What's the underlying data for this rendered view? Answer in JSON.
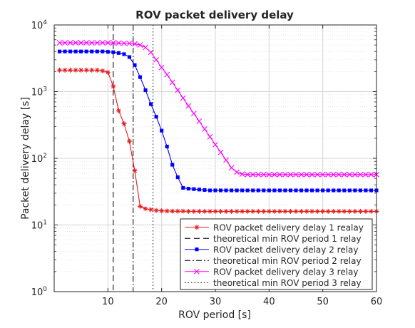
{
  "chart_data": {
    "type": "line",
    "title": "ROV packet delivery delay",
    "xlabel": "ROV period [s]",
    "ylabel": "Packet delivery delay [s]",
    "xlim": [
      0,
      60
    ],
    "ylim": [
      1,
      10000
    ],
    "yscale": "log",
    "grid": true,
    "legend_position": "bottom-right",
    "x_ticks": [
      {
        "value": 10,
        "label": "10"
      },
      {
        "value": 20,
        "label": "20"
      },
      {
        "value": 30,
        "label": "30"
      },
      {
        "value": 40,
        "label": "40"
      },
      {
        "value": 50,
        "label": "50"
      },
      {
        "value": 60,
        "label": "60"
      }
    ],
    "y_ticks": [
      {
        "value": 1,
        "base": "10",
        "exp": "0"
      },
      {
        "value": 10,
        "base": "10",
        "exp": "1"
      },
      {
        "value": 100,
        "base": "10",
        "exp": "2"
      },
      {
        "value": 1000,
        "base": "10",
        "exp": "3"
      },
      {
        "value": 10000,
        "base": "10",
        "exp": "4"
      }
    ],
    "series": [
      {
        "name": "ROV packet delivery delay 1 realay",
        "color": "#e41a1c",
        "marker": "asterisk",
        "x": [
          1,
          2,
          3,
          4,
          5,
          6,
          7,
          8,
          9,
          10,
          11,
          12,
          13,
          14,
          15,
          16,
          17,
          18,
          19,
          20,
          21,
          22,
          23,
          24,
          25,
          26,
          27,
          28,
          29,
          30,
          31,
          32,
          33,
          34,
          35,
          36,
          37,
          38,
          39,
          40,
          41,
          42,
          43,
          44,
          45,
          46,
          47,
          48,
          49,
          50,
          51,
          52,
          53,
          54,
          55,
          56,
          57,
          58,
          59,
          60
        ],
        "values": [
          2100,
          2100,
          2100,
          2100,
          2100,
          2100,
          2100,
          2100,
          2050,
          1950,
          1200,
          520,
          330,
          180,
          65,
          19,
          17.5,
          17,
          16.5,
          16.3,
          16.2,
          16.1,
          16.1,
          16.1,
          16,
          16,
          16,
          16,
          16,
          16,
          16,
          16,
          16,
          16,
          16,
          16,
          16,
          16,
          16,
          16,
          16,
          16,
          16,
          16,
          16,
          16,
          16,
          16,
          16,
          16,
          16,
          16,
          16,
          16,
          16,
          16,
          16,
          16,
          16,
          16
        ]
      },
      {
        "name": "theoretical min ROV period 1 relay",
        "color": "#000000",
        "style": "dashed",
        "vline": 11
      },
      {
        "name": "ROV packet delivery delay 2 relay",
        "color": "#0000ff",
        "marker": "square",
        "x": [
          1,
          2,
          3,
          4,
          5,
          6,
          7,
          8,
          9,
          10,
          11,
          12,
          13,
          14,
          15,
          16,
          17,
          18,
          19,
          20,
          21,
          22,
          23,
          24,
          25,
          26,
          27,
          28,
          29,
          30,
          31,
          32,
          33,
          34,
          35,
          36,
          37,
          38,
          39,
          40,
          41,
          42,
          43,
          44,
          45,
          46,
          47,
          48,
          49,
          50,
          51,
          52,
          53,
          54,
          55,
          56,
          57,
          58,
          59,
          60
        ],
        "values": [
          4000,
          4000,
          4000,
          4000,
          4000,
          4000,
          4000,
          4000,
          4000,
          3950,
          3900,
          3800,
          3650,
          3300,
          2500,
          1650,
          1050,
          650,
          420,
          260,
          150,
          80,
          52,
          36,
          35,
          34.5,
          34,
          33.5,
          33,
          33,
          33,
          33,
          33,
          33,
          33,
          33,
          33,
          33,
          33,
          33,
          33,
          33,
          33,
          33,
          33,
          33,
          33,
          33,
          33,
          33,
          33,
          33,
          33,
          33,
          33,
          33,
          33,
          33,
          33,
          33
        ]
      },
      {
        "name": "theoretical min ROV period 2 relay",
        "color": "#000000",
        "style": "dashdot",
        "vline": 14.7
      },
      {
        "name": "ROV packet delivery delay 3 relay",
        "color": "#ff00ff",
        "marker": "x",
        "x": [
          1,
          2,
          3,
          4,
          5,
          6,
          7,
          8,
          9,
          10,
          11,
          12,
          13,
          14,
          15,
          16,
          17,
          18,
          19,
          20,
          21,
          22,
          23,
          24,
          25,
          26,
          27,
          28,
          29,
          30,
          31,
          32,
          33,
          34,
          35,
          36,
          37,
          38,
          39,
          40,
          41,
          42,
          43,
          44,
          45,
          46,
          47,
          48,
          49,
          50,
          51,
          52,
          53,
          54,
          55,
          56,
          57,
          58,
          59,
          60
        ],
        "values": [
          5400,
          5400,
          5400,
          5400,
          5400,
          5400,
          5400,
          5400,
          5400,
          5400,
          5400,
          5350,
          5300,
          5300,
          5200,
          5000,
          4600,
          3900,
          3000,
          2300,
          1800,
          1380,
          1050,
          800,
          610,
          470,
          360,
          275,
          210,
          160,
          123,
          94,
          72,
          62,
          58,
          57,
          57,
          57,
          57,
          57,
          57,
          57,
          57,
          57,
          57,
          57,
          57,
          57,
          57,
          57,
          57,
          57,
          57,
          57,
          57,
          57,
          57,
          57,
          57,
          57
        ]
      },
      {
        "name": "theoretical min ROV period 3 relay",
        "color": "#000000",
        "style": "dotted",
        "vline": 18.4
      }
    ]
  }
}
